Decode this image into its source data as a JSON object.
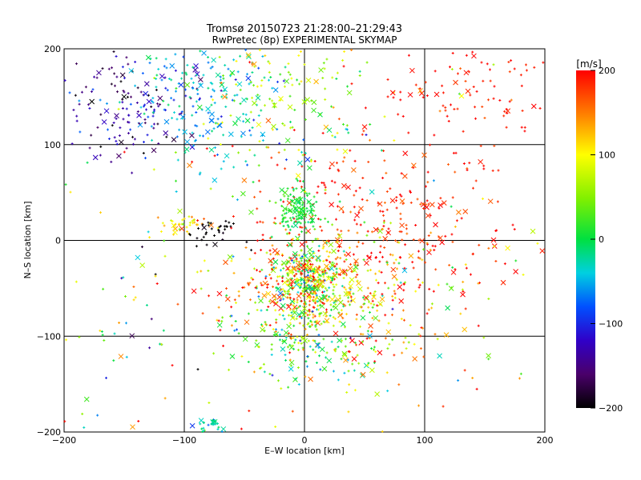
{
  "chart_data": {
    "type": "scatter",
    "title": "Tromsø 20150723 21:28:00–21:29:43",
    "subtitle": "RwPretec (8p) EXPERIMENTAL SKYMAP",
    "xlabel": "E–W location [km]",
    "ylabel": "N–S location [km]",
    "xlim": [
      -200,
      200
    ],
    "ylim": [
      -200,
      200
    ],
    "xticks": [
      -200,
      -100,
      0,
      100,
      200
    ],
    "yticks": [
      -200,
      -100,
      0,
      100,
      200
    ],
    "grid": true,
    "marker_types": [
      "+",
      "x"
    ],
    "colorbar": {
      "label": "[m/s]",
      "min": -200,
      "max": 200,
      "ticks": [
        -200,
        -100,
        0,
        100,
        200
      ],
      "colormap": "rainbow: black-purple-blue-cyan-green-yellow-orange-red"
    },
    "clusters": [
      {
        "cx": -150,
        "cy": 140,
        "sx": 28,
        "sy": 30,
        "n": 150,
        "v": -140,
        "vs": 35
      },
      {
        "cx": -85,
        "cy": 155,
        "sx": 35,
        "sy": 32,
        "n": 200,
        "v": -40,
        "vs": 30
      },
      {
        "cx": -15,
        "cy": 170,
        "sx": 30,
        "sy": 20,
        "n": 80,
        "v": 60,
        "vs": 40
      },
      {
        "cx": 140,
        "cy": 155,
        "sx": 45,
        "sy": 30,
        "n": 110,
        "v": 195,
        "vs": 10
      },
      {
        "cx": 60,
        "cy": 15,
        "sx": 55,
        "sy": 40,
        "n": 280,
        "v": 190,
        "vs": 20
      },
      {
        "cx": -5,
        "cy": 30,
        "sx": 9,
        "sy": 13,
        "n": 140,
        "v": 10,
        "vs": 15
      },
      {
        "cx": 5,
        "cy": -45,
        "sx": 16,
        "sy": 22,
        "n": 420,
        "v": 80,
        "vs": 80
      },
      {
        "cx": 0,
        "cy": -100,
        "sx": 35,
        "sy": 25,
        "n": 170,
        "v": 20,
        "vs": 60
      },
      {
        "cx": -100,
        "cy": 15,
        "sx": 12,
        "sy": 6,
        "n": 40,
        "v": 110,
        "vs": 30
      },
      {
        "cx": -75,
        "cy": 8,
        "sx": 12,
        "sy": 6,
        "n": 35,
        "v": -200,
        "vs": 5
      },
      {
        "cx": -25,
        "cy": -45,
        "sx": 30,
        "sy": 30,
        "n": 110,
        "v": 150,
        "vs": 50
      },
      {
        "cx": 45,
        "cy": -70,
        "sx": 30,
        "sy": 40,
        "n": 130,
        "v": 90,
        "vs": 60
      },
      {
        "cx": 90,
        "cy": -50,
        "sx": 40,
        "sy": 55,
        "n": 90,
        "v": 150,
        "vs": 50
      },
      {
        "cx": -75,
        "cy": -195,
        "sx": 8,
        "sy": 4,
        "n": 25,
        "v": -20,
        "vs": 30
      },
      {
        "cx": -150,
        "cy": -100,
        "sx": 35,
        "sy": 60,
        "n": 40,
        "v": 0,
        "vs": 120
      },
      {
        "cx": -20,
        "cy": 110,
        "sx": 40,
        "sy": 20,
        "n": 60,
        "v": 20,
        "vs": 60
      },
      {
        "cx": 0,
        "cy": 0,
        "sx": 140,
        "sy": 140,
        "n": 200,
        "v": 100,
        "vs": 90
      }
    ]
  }
}
